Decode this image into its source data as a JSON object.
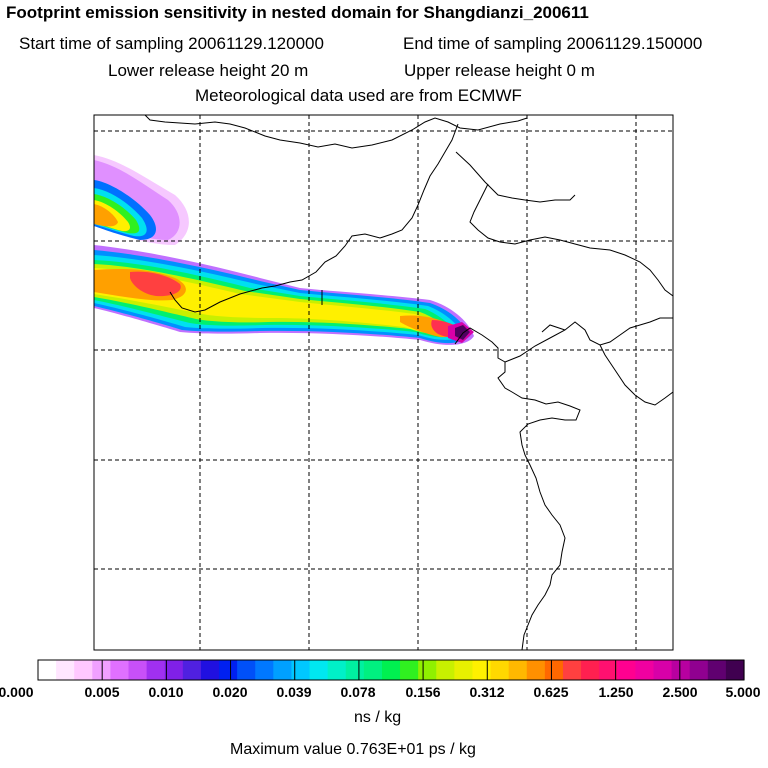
{
  "title": "Footprint emission sensitivity in nested domain for Shangdianzi_200611",
  "start_label": "Start time of sampling 20061129.120000",
  "end_label": "End time of sampling 20061129.150000",
  "lower_label": "Lower release height   20 m",
  "upper_label": "Upper release height    0 m",
  "met_label": "Meteorological data used are from ECMWF",
  "colorbar": {
    "ticks": [
      "0.000",
      "0.005",
      "0.010",
      "0.020",
      "0.039",
      "0.078",
      "0.156",
      "0.312",
      "0.625",
      "1.250",
      "2.500",
      "5.000"
    ],
    "units": "ns / kg",
    "colors": [
      "#ffffff",
      "#ffe6ff",
      "#ffc8ff",
      "#f0a0ff",
      "#e070ff",
      "#c850f8",
      "#a030f0",
      "#8020e8",
      "#5020e0",
      "#2010e0",
      "#0020f0",
      "#0050f8",
      "#0078ff",
      "#00a0ff",
      "#00c8ff",
      "#00e8f0",
      "#00f0c8",
      "#00f0a0",
      "#00f080",
      "#00f050",
      "#30f020",
      "#90f000",
      "#c8f000",
      "#e8f000",
      "#fff000",
      "#ffd800",
      "#ffb800",
      "#ff9000",
      "#ff6800",
      "#ff4040",
      "#ff2050",
      "#ff1070",
      "#ff0090",
      "#f000a0",
      "#d800a8",
      "#b800a0",
      "#900090",
      "#600070",
      "#400050"
    ]
  },
  "max_value": "Maximum value  0.763E+01 ps / kg",
  "colors": {
    "frame": "#000000",
    "grid": "#000000"
  }
}
